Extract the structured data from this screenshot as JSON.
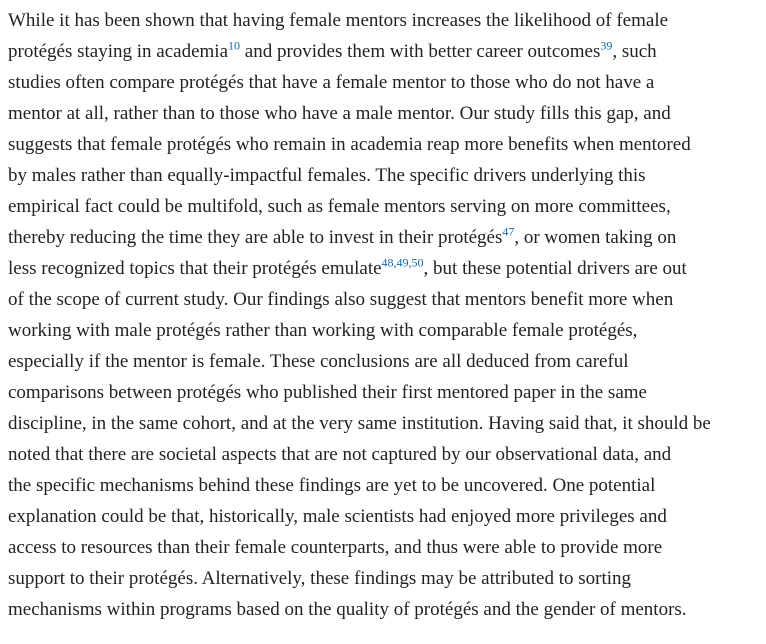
{
  "paragraph": {
    "lines": [
      [
        {
          "text": "While it has been shown that having female mentors increases the likelihood of female"
        }
      ],
      [
        {
          "text": "protégés staying in academia"
        },
        {
          "ref": "10"
        },
        {
          "text": " and provides them with better career outcomes"
        },
        {
          "ref": "39"
        },
        {
          "text": ", such"
        }
      ],
      [
        {
          "text": "studies often compare protégés that have a female mentor to those who do not have a"
        }
      ],
      [
        {
          "text": "mentor at all, rather than to those who have a male mentor. Our study fills this gap, and"
        }
      ],
      [
        {
          "text": "suggests that female protégés who remain in academia reap more benefits when mentored"
        }
      ],
      [
        {
          "text": "by males rather than equally-impactful females. The specific drivers underlying this"
        }
      ],
      [
        {
          "text": "empirical fact could be multifold, such as female mentors serving on more committees,"
        }
      ],
      [
        {
          "text": "thereby reducing the time they are able to invest in their protégés"
        },
        {
          "ref": "47"
        },
        {
          "text": ", or women taking on"
        }
      ],
      [
        {
          "text": "less recognized topics that their protégés emulate"
        },
        {
          "ref": "48,49,50"
        },
        {
          "text": ", but these potential drivers are out"
        }
      ],
      [
        {
          "text": "of the scope of current study. Our findings also suggest that mentors benefit more when"
        }
      ],
      [
        {
          "text": "working with male protégés rather than working with comparable female protégés,"
        }
      ],
      [
        {
          "text": "especially if the mentor is female. These conclusions are all deduced from careful"
        }
      ],
      [
        {
          "text": "comparisons between protégés who published their first mentored paper in the same"
        }
      ],
      [
        {
          "text": "discipline, in the same cohort, and at the very same institution. Having said that, it should be"
        }
      ],
      [
        {
          "text": "noted that there are societal aspects that are not captured by our observational data, and"
        }
      ],
      [
        {
          "text": "the specific mechanisms behind these findings are yet to be uncovered. One potential"
        }
      ],
      [
        {
          "text": "explanation could be that, historically, male scientists had enjoyed more privileges and"
        }
      ],
      [
        {
          "text": "access to resources than their female counterparts, and thus were able to provide more"
        }
      ],
      [
        {
          "text": "support to their protégés. Alternatively, these findings may be attributed to sorting"
        }
      ],
      [
        {
          "text": "mechanisms within programs based on the quality of protégés and the gender of mentors."
        }
      ]
    ]
  }
}
